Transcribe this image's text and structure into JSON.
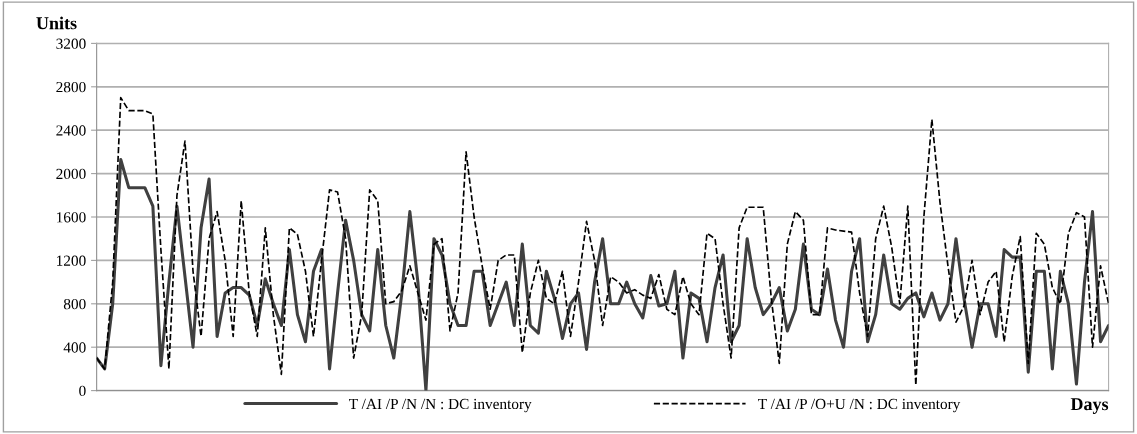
{
  "chart_data": {
    "type": "line",
    "xlabel": "Days",
    "ylabel": "Units",
    "categories": [
      null,
      null,
      null,
      null,
      null,
      null,
      null,
      null,
      null,
      null,
      null,
      null,
      null,
      null,
      null,
      null,
      null,
      null,
      null,
      null,
      null,
      null,
      null,
      null,
      null,
      null,
      null,
      null,
      null,
      null,
      null,
      null,
      null,
      null,
      null,
      null,
      null,
      null,
      null,
      null,
      null,
      null,
      null,
      null,
      null,
      null,
      null,
      null,
      null,
      null,
      null,
      null,
      null,
      null,
      null,
      null,
      null,
      null,
      null,
      null,
      null,
      null,
      null,
      null,
      null,
      null,
      null,
      null,
      null,
      null,
      null,
      null,
      null,
      null,
      null,
      null,
      null,
      null,
      null,
      null,
      null,
      null,
      null,
      null,
      null,
      null,
      null,
      null,
      null,
      null,
      null,
      null,
      null,
      null,
      null,
      null,
      null,
      null,
      null,
      null,
      null,
      null,
      null,
      null,
      null,
      null,
      null,
      null,
      null,
      null,
      null,
      null,
      null,
      null,
      null,
      null,
      null,
      null,
      null,
      null,
      null,
      null,
      null,
      null,
      null,
      null,
      null
    ],
    "series": [
      {
        "name": "T /AI /P /N /N : DC inventory",
        "color": "#404040",
        "line_style": "solid",
        "values": [
          300,
          200,
          800,
          2130,
          1870,
          1870,
          1870,
          1700,
          230,
          1000,
          1700,
          1050,
          400,
          1500,
          1950,
          500,
          900,
          950,
          950,
          880,
          600,
          1030,
          800,
          600,
          1300,
          700,
          450,
          1100,
          1300,
          200,
          900,
          1570,
          1200,
          700,
          550,
          1300,
          600,
          300,
          900,
          1650,
          1000,
          0,
          1400,
          1250,
          800,
          600,
          600,
          1100,
          1100,
          600,
          800,
          1000,
          600,
          1350,
          600,
          530,
          1100,
          850,
          480,
          800,
          900,
          380,
          1000,
          1400,
          800,
          800,
          1000,
          800,
          670,
          1060,
          780,
          800,
          1100,
          300,
          900,
          850,
          450,
          950,
          1250,
          450,
          600,
          1400,
          950,
          700,
          800,
          950,
          550,
          750,
          1350,
          750,
          700,
          1120,
          650,
          400,
          1100,
          1400,
          450,
          700,
          1250,
          800,
          750,
          850,
          900,
          680,
          900,
          650,
          800,
          1400,
          850,
          400,
          800,
          800,
          500,
          1300,
          1230,
          1230,
          170,
          1100,
          1100,
          200,
          1100,
          800,
          60,
          1000,
          1650,
          450,
          600
        ]
      },
      {
        "name": "T /AI /P /O+U /N : DC inventory",
        "color": "#000000",
        "line_style": "dashed",
        "values": [
          300,
          200,
          1000,
          2700,
          2580,
          2580,
          2580,
          2550,
          1300,
          200,
          1800,
          2300,
          1100,
          500,
          1400,
          1650,
          1200,
          500,
          1750,
          900,
          500,
          1500,
          700,
          150,
          1500,
          1440,
          1100,
          500,
          1200,
          1850,
          1830,
          1400,
          300,
          700,
          1850,
          1750,
          800,
          820,
          920,
          1150,
          900,
          650,
          1350,
          1400,
          550,
          900,
          2200,
          1600,
          1150,
          750,
          1200,
          1250,
          1250,
          350,
          900,
          1200,
          850,
          800,
          1100,
          500,
          1000,
          1560,
          1200,
          600,
          1050,
          1000,
          900,
          930,
          880,
          850,
          1070,
          750,
          700,
          1050,
          800,
          700,
          1450,
          1400,
          800,
          300,
          1500,
          1690,
          1690,
          1690,
          850,
          250,
          1350,
          1650,
          1570,
          700,
          700,
          1500,
          1480,
          1470,
          1460,
          900,
          500,
          1400,
          1700,
          1320,
          800,
          1700,
          50,
          1600,
          2500,
          1740,
          1150,
          630,
          780,
          1200,
          700,
          1000,
          1100,
          450,
          1050,
          1420,
          250,
          1450,
          1350,
          950,
          800,
          1450,
          1640,
          1600,
          400,
          1150,
          800
        ]
      }
    ],
    "ylim": [
      0,
      3200
    ],
    "yticks": [
      0,
      400,
      800,
      1200,
      1600,
      2000,
      2400,
      2800,
      3200
    ],
    "grid": "y",
    "legend": "bottom",
    "tick_labels": "y"
  }
}
